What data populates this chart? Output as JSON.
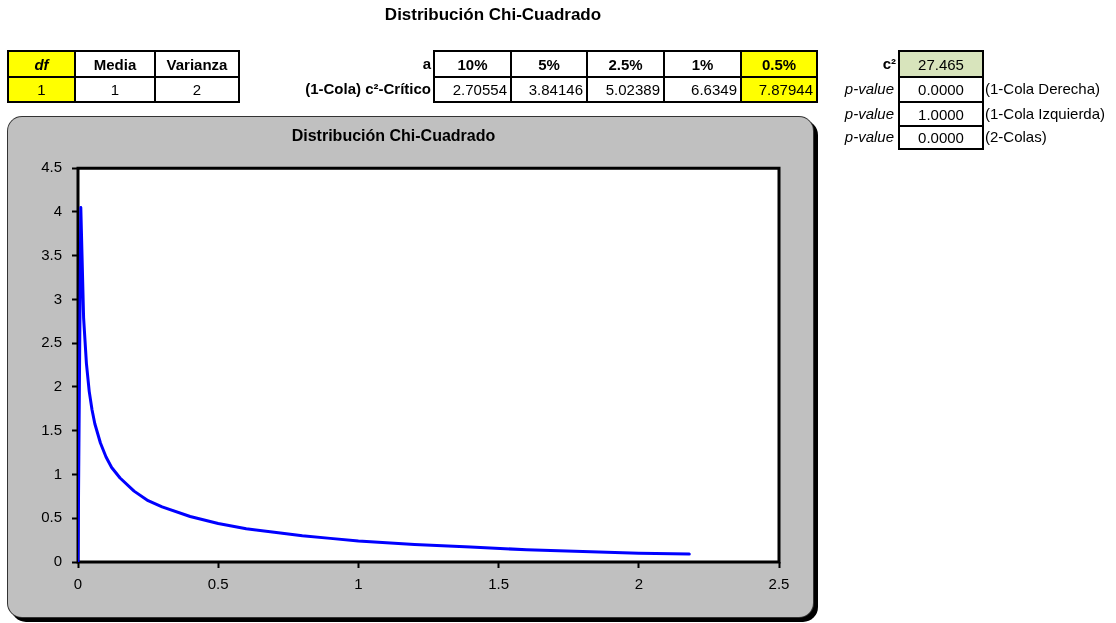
{
  "chart_data": [
    {
      "type": "other",
      "title": "Distribución Chi-Cuadrado",
      "annotations": [
        "df",
        "Media",
        "Varianza",
        "1",
        "1",
        "2",
        "a",
        "10%",
        "5%",
        "2.5%",
        "1%",
        "0.5%",
        "(1-Cola) c²-Crítico",
        "2.70554",
        "3.84146",
        "5.02389",
        "6.6349",
        "7.87944",
        "c²",
        "27.465",
        "p-value",
        "0.0000",
        "(1-Cola Derecha)",
        "p-value",
        "1.0000",
        "(1-Cola Izquierda)",
        "p-value",
        "0.0000",
        "(2-Colas)"
      ]
    },
    {
      "type": "line",
      "title": "Distribución Chi-Cuadrado",
      "x": [
        0,
        0.01,
        0.02,
        0.03,
        0.04,
        0.05,
        0.06,
        0.08,
        0.1,
        0.12,
        0.15,
        0.2,
        0.25,
        0.3,
        0.4,
        0.5,
        0.6,
        0.7,
        0.8,
        0.9,
        1,
        1.2,
        1.4,
        1.6,
        1.8,
        2,
        2.18
      ],
      "series": [
        {
          "color": "#0000ff",
          "values": [
            0,
            4.05,
            2.79,
            2.27,
            1.95,
            1.74,
            1.58,
            1.36,
            1.2,
            1.08,
            0.96,
            0.81,
            0.7,
            0.63,
            0.52,
            0.44,
            0.38,
            0.34,
            0.3,
            0.27,
            0.24,
            0.2,
            0.17,
            0.14,
            0.12,
            0.1,
            0.09
          ]
        }
      ],
      "xlim": [
        0,
        2.5
      ],
      "xticks": [
        0,
        0.5,
        1,
        1.5,
        2,
        2.5
      ],
      "ylim": [
        0,
        4.5
      ],
      "yticks": [
        0,
        0.5,
        1,
        1.5,
        2,
        2.5,
        3,
        3.5,
        4,
        4.5
      ]
    }
  ]
}
